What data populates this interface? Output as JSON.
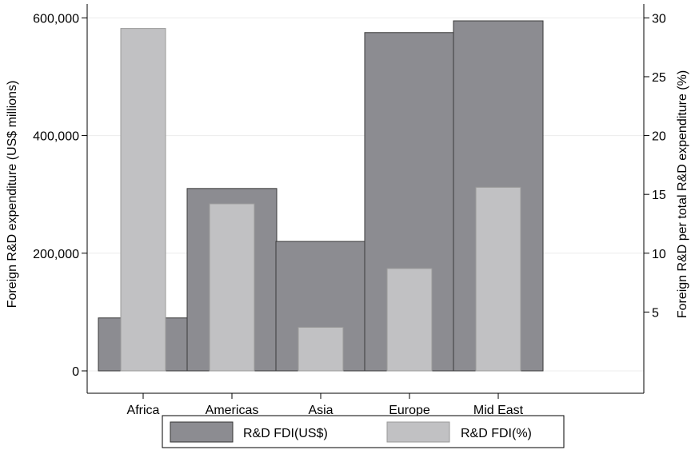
{
  "chart_data": {
    "type": "bar",
    "categories": [
      "Africa",
      "Americas",
      "Asia",
      "Europe",
      "Mid East"
    ],
    "series": [
      {
        "name": "R&D FDI(US$)",
        "axis": "left",
        "color": "#8c8c91",
        "values": [
          90000,
          310000,
          220000,
          575000,
          595000
        ]
      },
      {
        "name": "R&D FDI(%)",
        "axis": "right",
        "color": "#c1c1c3",
        "values": [
          29.1,
          14.2,
          3.7,
          8.7,
          15.6
        ]
      }
    ],
    "y_left": {
      "label": "Foreign R&D expenditure (US$ millions)",
      "ylim": [
        0,
        610000
      ],
      "ticks": [
        0,
        200000,
        400000,
        600000
      ],
      "tick_labels": [
        "0",
        "200,000",
        "400,000",
        "600,000"
      ]
    },
    "y_right": {
      "label": "Foreign R&D per total R&D expenditure (%)",
      "ylim": [
        0,
        30.5
      ],
      "ticks": [
        5,
        10,
        15,
        20,
        25,
        30
      ],
      "tick_labels": [
        "5",
        "10",
        "15",
        "20",
        "25",
        "30"
      ]
    },
    "grid": true,
    "legend_position": "bottom"
  }
}
